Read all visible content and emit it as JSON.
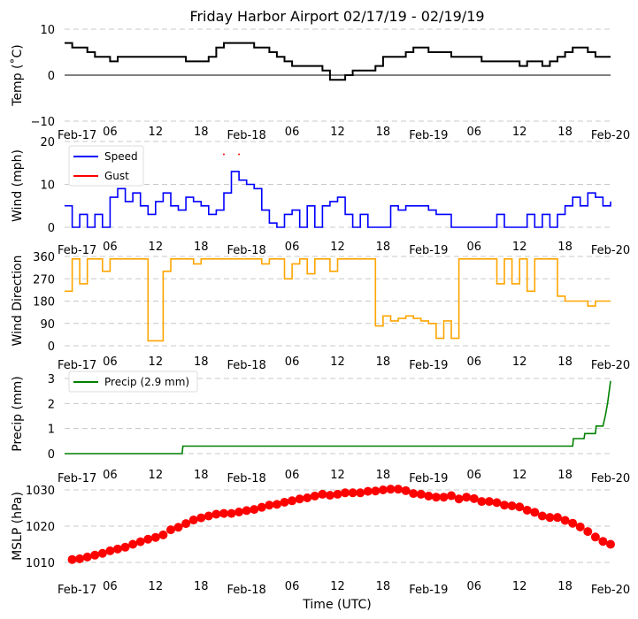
{
  "chart_data": [
    {
      "type": "line",
      "title": "Friday Harbor Airport 02/17/19 - 02/19/19",
      "ylabel": "Temp ($^\\circ$C)",
      "ylabel_text": "Temp (˚C)",
      "ylim": [
        -10,
        10
      ],
      "yticks": [
        "10",
        "0",
        "−10"
      ],
      "ytick_values": [
        10,
        0,
        -10
      ],
      "x_unit": "hours since Feb-17 00 UTC",
      "xlim": [
        0,
        72
      ],
      "series": [
        {
          "name": "Temp",
          "color": "#000000",
          "x_step": 1,
          "values": [
            7,
            6,
            6,
            5,
            4,
            4,
            3,
            4,
            4,
            4,
            4,
            4,
            4,
            4,
            4,
            4,
            3,
            3,
            3,
            4,
            6,
            7,
            7,
            7,
            7,
            6,
            6,
            5,
            4,
            3,
            2,
            2,
            2,
            2,
            1,
            -1,
            -1,
            0,
            1,
            1,
            1,
            2,
            4,
            4,
            4,
            5,
            6,
            6,
            5,
            5,
            5,
            4,
            4,
            4,
            4,
            3,
            3,
            3,
            3,
            3,
            2,
            3,
            3,
            2,
            3,
            4,
            5,
            6,
            6,
            5,
            4,
            4,
            4
          ]
        }
      ]
    },
    {
      "type": "line",
      "ylabel": "Wind (mph)",
      "ylim": [
        0,
        20
      ],
      "yticks": [
        "20",
        "10",
        "0"
      ],
      "ytick_values": [
        20,
        10,
        0
      ],
      "xlim": [
        0,
        72
      ],
      "legend": "upper-left",
      "series": [
        {
          "name": "Speed",
          "color": "#0000ff",
          "x_step": 1,
          "values": [
            5,
            0,
            3,
            0,
            3,
            0,
            7,
            9,
            6,
            8,
            5,
            3,
            6,
            8,
            5,
            4,
            7,
            6,
            5,
            3,
            4,
            8,
            13,
            11,
            10,
            9,
            4,
            1,
            0,
            3,
            4,
            0,
            5,
            0,
            5,
            6,
            7,
            3,
            0,
            3,
            0,
            0,
            0,
            5,
            4,
            5,
            5,
            5,
            4,
            3,
            3,
            0,
            0,
            0,
            0,
            0,
            0,
            3,
            0,
            0,
            0,
            3,
            0,
            3,
            0,
            3,
            5,
            7,
            5,
            8,
            7,
            5,
            6
          ]
        },
        {
          "name": "Gust",
          "color": "#ff0000",
          "points": [
            [
              21,
              17
            ],
            [
              23,
              17
            ]
          ]
        }
      ]
    },
    {
      "type": "line",
      "ylabel": "Wind Direction",
      "ylim": [
        0,
        360
      ],
      "yticks": [
        "360",
        "270",
        "180",
        "90",
        "0"
      ],
      "ytick_values": [
        360,
        270,
        180,
        90,
        0
      ],
      "xlim": [
        0,
        72
      ],
      "series": [
        {
          "name": "Direction",
          "color": "#ffa500",
          "x_step": 1,
          "values": [
            220,
            350,
            250,
            350,
            350,
            300,
            350,
            350,
            350,
            350,
            350,
            20,
            20,
            300,
            350,
            350,
            350,
            330,
            350,
            350,
            350,
            350,
            350,
            350,
            350,
            350,
            330,
            350,
            350,
            270,
            330,
            350,
            290,
            350,
            350,
            300,
            350,
            350,
            350,
            350,
            350,
            80,
            120,
            100,
            110,
            120,
            110,
            100,
            90,
            30,
            100,
            30,
            350,
            350,
            350,
            350,
            350,
            250,
            350,
            250,
            350,
            220,
            350,
            350,
            350,
            200,
            180,
            180,
            180,
            160,
            180,
            180,
            180
          ]
        }
      ]
    },
    {
      "type": "line",
      "ylabel": "Precip (mm)",
      "ylim": [
        0,
        3
      ],
      "yticks": [
        "3",
        "2",
        "1",
        "0"
      ],
      "ytick_values": [
        3,
        2,
        1,
        0
      ],
      "xlim": [
        0,
        72
      ],
      "legend": "upper-left",
      "series": [
        {
          "name": "Precip (2.9 mm)",
          "color": "#008000",
          "points": [
            [
              0,
              0
            ],
            [
              15.5,
              0
            ],
            [
              15.6,
              0.3
            ],
            [
              67,
              0.3
            ],
            [
              67.1,
              0.6
            ],
            [
              68.5,
              0.6
            ],
            [
              68.6,
              0.8
            ],
            [
              70,
              0.8
            ],
            [
              70.1,
              1.1
            ],
            [
              71,
              1.1
            ],
            [
              71.3,
              1.5
            ],
            [
              71.6,
              2
            ],
            [
              72,
              2.9
            ]
          ]
        }
      ]
    },
    {
      "type": "scatter",
      "ylabel": "MSLP (hPa)",
      "xlabel": "Time (UTC)",
      "ylim": [
        1006,
        1032
      ],
      "yticks": [
        "1030",
        "1020",
        "1010"
      ],
      "ytick_values": [
        1030,
        1020,
        1010
      ],
      "xlim": [
        0,
        72
      ],
      "series": [
        {
          "name": "MSLP",
          "color": "#ff0000",
          "x_start": 1,
          "x_step": 1,
          "values": [
            1010.8,
            1011,
            1011.5,
            1012,
            1012.5,
            1013.2,
            1013.7,
            1014.2,
            1015,
            1015.7,
            1016.4,
            1016.9,
            1017.6,
            1019,
            1019.7,
            1020.7,
            1021.7,
            1022.3,
            1022.8,
            1023.3,
            1023.5,
            1023.5,
            1023.9,
            1024.3,
            1024.6,
            1025.2,
            1025.8,
            1026,
            1026.6,
            1027,
            1027.5,
            1027.8,
            1028.3,
            1028.8,
            1028.5,
            1028.8,
            1029.2,
            1029.2,
            1029.2,
            1029.6,
            1029.7,
            1030,
            1030.2,
            1030.2,
            1029.8,
            1029,
            1028.8,
            1028.3,
            1028,
            1028,
            1028.4,
            1027.5,
            1028,
            1027.6,
            1026.8,
            1026.8,
            1026.5,
            1025.8,
            1025.6,
            1025.3,
            1024.4,
            1023.8,
            1022.8,
            1022.4,
            1022.4,
            1021.6,
            1020.8,
            1019.8,
            1018.5,
            1017,
            1015.8,
            1015
          ]
        }
      ]
    }
  ],
  "xticks": [
    "Feb-17",
    "06",
    "12",
    "18",
    "Feb-18",
    "06",
    "12",
    "18",
    "Feb-19",
    "06",
    "12",
    "18",
    "Feb-20"
  ]
}
